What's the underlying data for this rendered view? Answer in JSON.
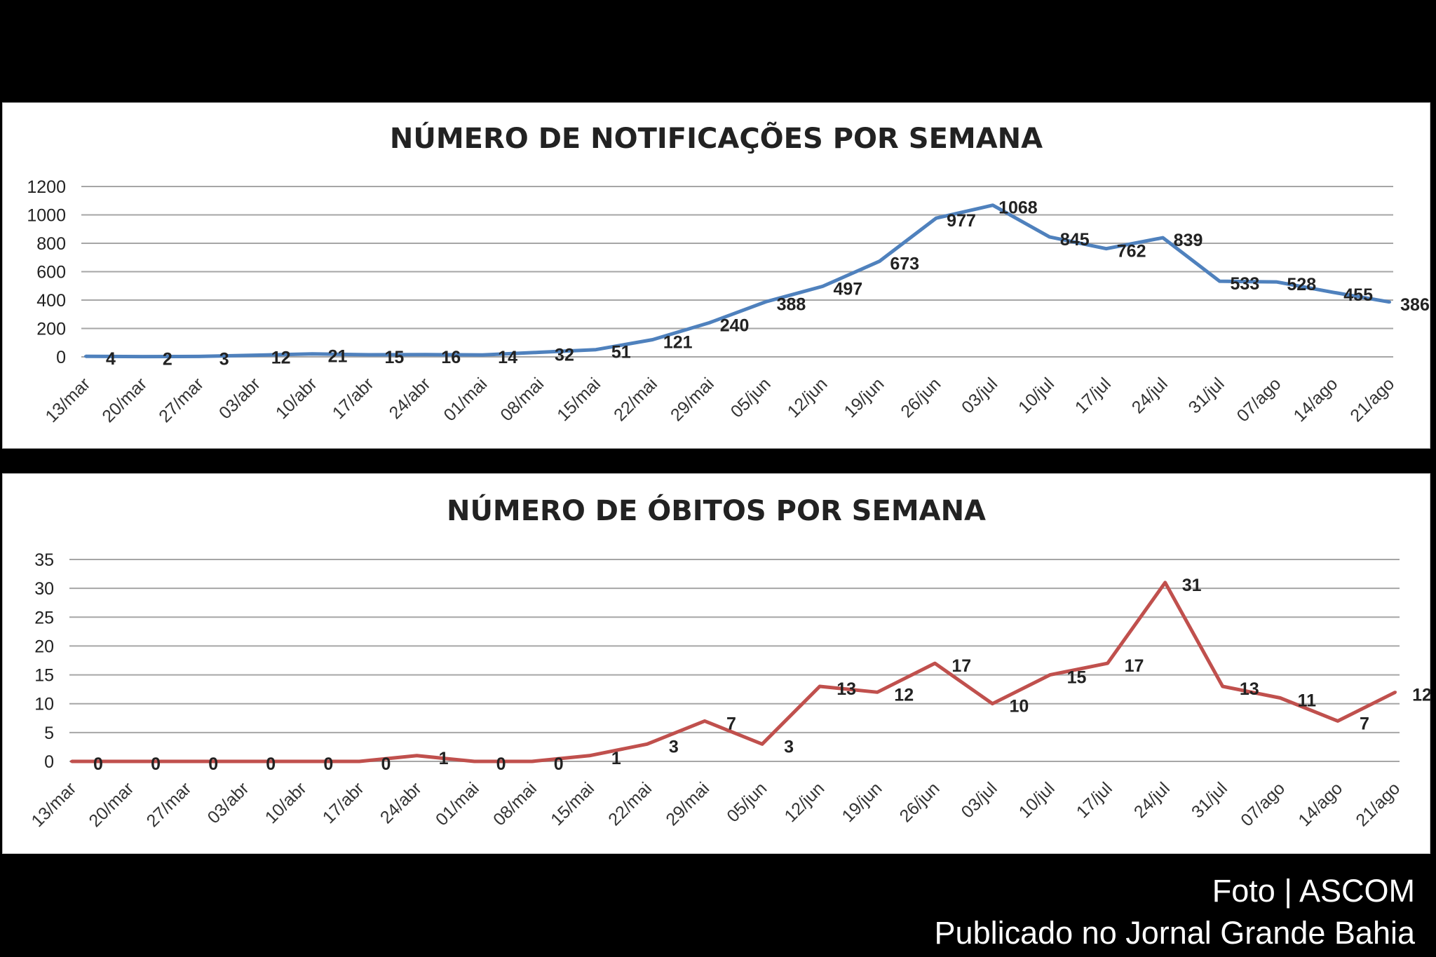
{
  "charts_meta": {
    "colors": {
      "notifications": "#4f81bd",
      "deaths": "#c0504d",
      "grid": "#a6a6a6"
    }
  },
  "chart_data": [
    {
      "type": "line",
      "title": "NÚMERO DE NOTIFICAÇÕES POR SEMANA",
      "xlabel": "",
      "ylabel": "",
      "ylim": [
        0,
        1200
      ],
      "yticks": [
        0,
        200,
        400,
        600,
        800,
        1000,
        1200
      ],
      "ytick_labels": [
        "0",
        "200",
        "400",
        "600",
        "800",
        "1000",
        "1200"
      ],
      "grid": true,
      "categories": [
        "13/mar",
        "20/mar",
        "27/mar",
        "03/abr",
        "10/abr",
        "17/abr",
        "24/abr",
        "01/mai",
        "08/mai",
        "15/mai",
        "22/mai",
        "29/mai",
        "05/jun",
        "12/jun",
        "19/jun",
        "26/jun",
        "03/jul",
        "10/jul",
        "17/jul",
        "24/jul",
        "31/jul",
        "07/ago",
        "14/ago",
        "21/ago"
      ],
      "series": [
        {
          "name": "Notificações",
          "values": [
            4,
            2,
            3,
            12,
            21,
            15,
            16,
            14,
            32,
            51,
            121,
            240,
            388,
            497,
            673,
            977,
            1068,
            845,
            762,
            839,
            533,
            528,
            455,
            386
          ]
        }
      ]
    },
    {
      "type": "line",
      "title": "NÚMERO DE ÓBITOS POR SEMANA",
      "xlabel": "",
      "ylabel": "",
      "ylim": [
        0,
        35
      ],
      "yticks": [
        0,
        5,
        10,
        15,
        20,
        25,
        30,
        35
      ],
      "ytick_labels": [
        "0",
        "5",
        "10",
        "15",
        "20",
        "25",
        "30",
        "35"
      ],
      "grid": true,
      "categories": [
        "13/mar",
        "20/mar",
        "27/mar",
        "03/abr",
        "10/abr",
        "17/abr",
        "24/abr",
        "01/mai",
        "08/mai",
        "15/mai",
        "22/mai",
        "29/mai",
        "05/jun",
        "12/jun",
        "19/jun",
        "26/jun",
        "03/jul",
        "10/jul",
        "17/jul",
        "24/jul",
        "31/jul",
        "07/ago",
        "14/ago",
        "21/ago"
      ],
      "series": [
        {
          "name": "Óbitos",
          "values": [
            0,
            0,
            0,
            0,
            0,
            0,
            1,
            0,
            0,
            1,
            3,
            7,
            3,
            13,
            12,
            17,
            10,
            15,
            17,
            31,
            13,
            11,
            7,
            12
          ]
        }
      ]
    }
  ],
  "credits": {
    "photo": "Foto | ASCOM",
    "published": "Publicado no Jornal Grande Bahia"
  }
}
